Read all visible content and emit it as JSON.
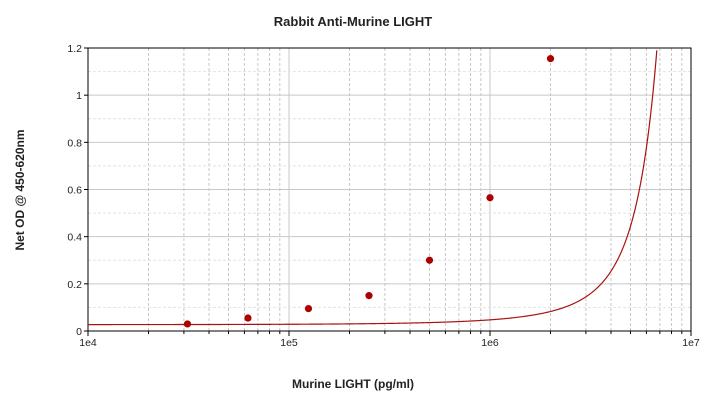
{
  "chart_data": {
    "type": "scatter",
    "title": "Rabbit Anti-Murine LIGHT",
    "xlabel": "Murine LIGHT (pg/ml)",
    "ylabel": "Net OD @ 450-620nm",
    "xscale": "log",
    "xlim": [
      10000,
      10000000
    ],
    "ylim": [
      0,
      1.2
    ],
    "grid": true,
    "x_ticks": [
      {
        "base": "1e",
        "exp": "4"
      },
      {
        "base": "1e",
        "exp": "5"
      },
      {
        "base": "1e",
        "exp": "6"
      },
      {
        "base": "1e",
        "exp": "7"
      }
    ],
    "y_ticks": [
      "0",
      "0.2",
      "0.4",
      "0.6",
      "0.8",
      "1",
      "1.2"
    ],
    "series": [
      {
        "points": [
          {
            "x": 31250,
            "y": 0.03
          },
          {
            "x": 62500,
            "y": 0.055
          },
          {
            "x": 125000,
            "y": 0.095
          },
          {
            "x": 250000,
            "y": 0.15
          },
          {
            "x": 500000,
            "y": 0.3
          },
          {
            "x": 1000000,
            "y": 0.565
          },
          {
            "x": 2000000,
            "y": 1.155
          }
        ],
        "fit": "exponential",
        "fit_params": {
          "a": 0.027,
          "b": 5.6e-07
        },
        "color": "#aa0000"
      }
    ],
    "colors": {
      "line": "#aa1111",
      "marker": "#aa0000",
      "grid": "#c8c8c8",
      "axis": "#000000"
    }
  }
}
